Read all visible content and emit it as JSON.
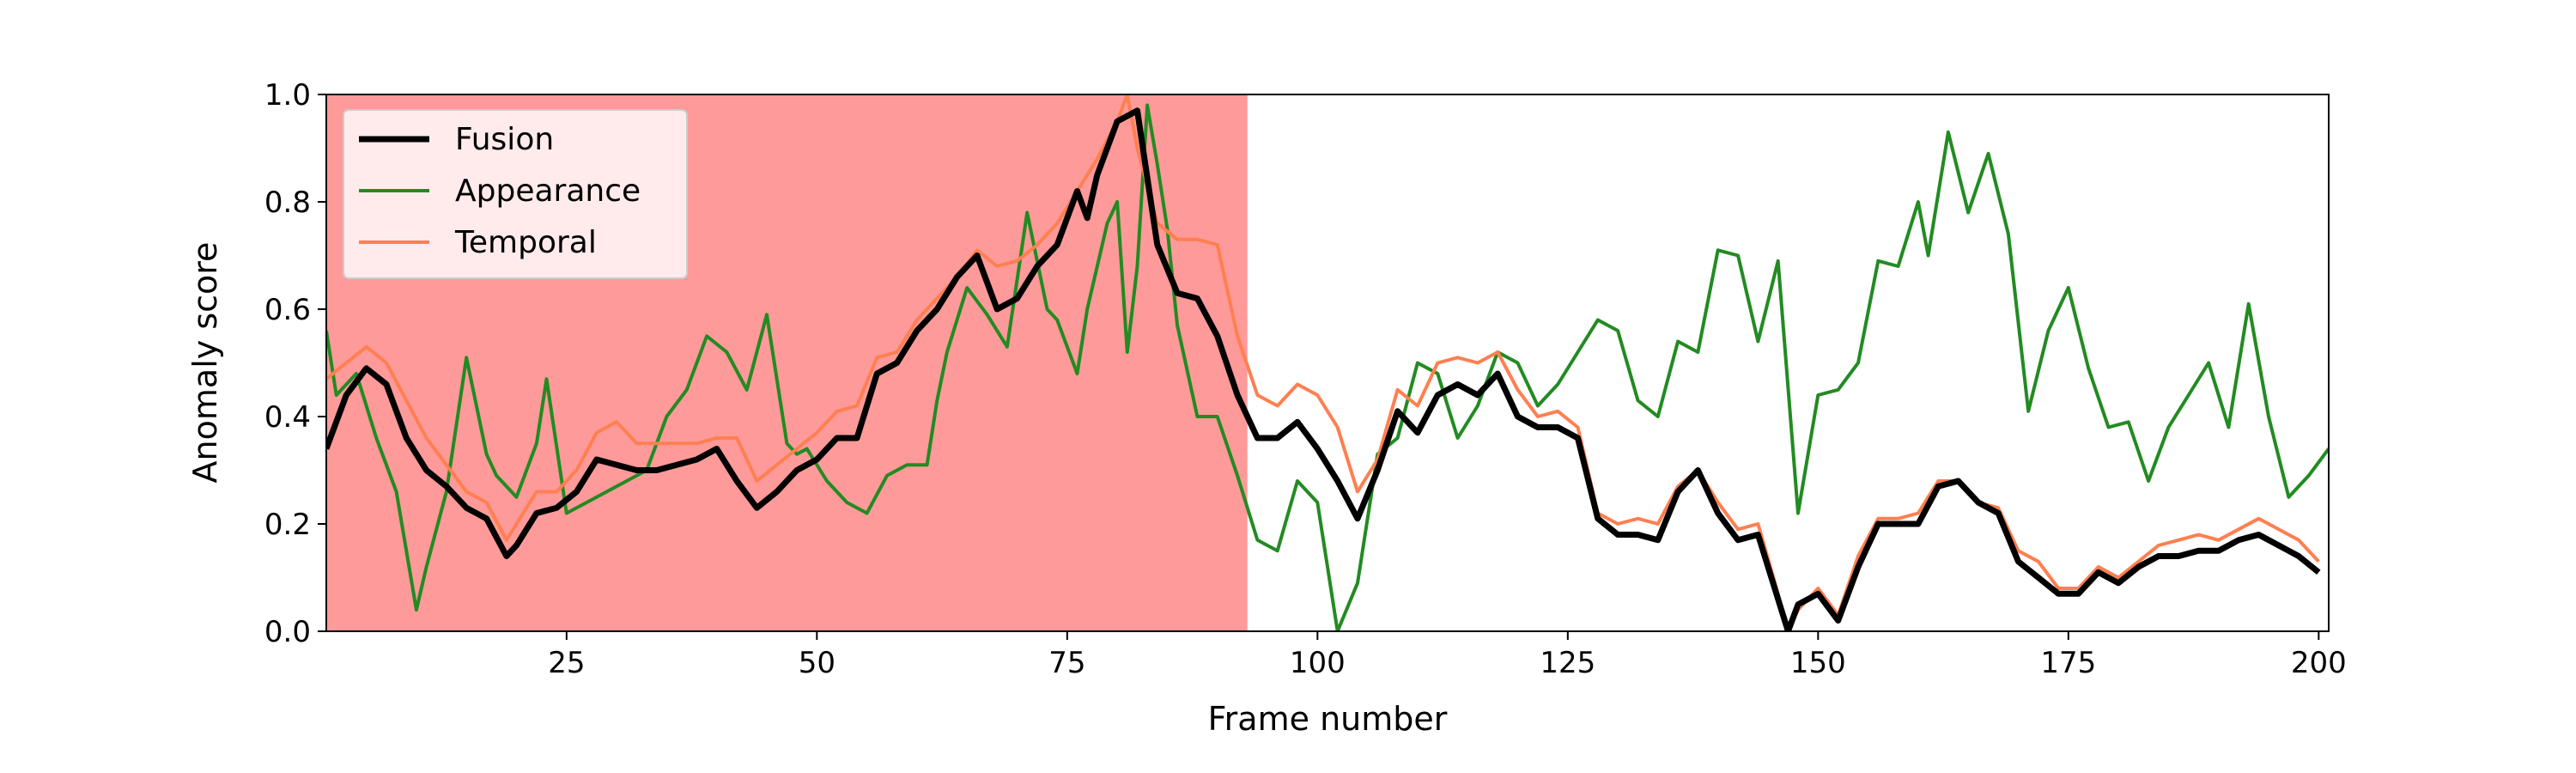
{
  "chart_data": {
    "type": "line",
    "xlabel": "Frame number",
    "ylabel": "Anomaly score",
    "xlim": [
      1,
      201
    ],
    "ylim": [
      0,
      1.0
    ],
    "xticks": [
      25,
      50,
      75,
      100,
      125,
      150,
      175,
      200
    ],
    "yticks": [
      0.0,
      0.2,
      0.4,
      0.6,
      0.8,
      1.0
    ],
    "xtick_labels": [
      "25",
      "50",
      "75",
      "100",
      "125",
      "150",
      "175",
      "200"
    ],
    "ytick_labels": [
      "0.0",
      "0.2",
      "0.4",
      "0.6",
      "0.8",
      "1.0"
    ],
    "grid": false,
    "legend_position": "upper-left",
    "shaded_region": {
      "x_start": 1,
      "x_end": 93,
      "color": "#ff9a9a"
    },
    "series": [
      {
        "name": "Fusion",
        "color": "#000000",
        "x": [
          1,
          3,
          5,
          7,
          9,
          11,
          13,
          15,
          17,
          19,
          20,
          22,
          24,
          26,
          28,
          30,
          32,
          34,
          36,
          38,
          40,
          42,
          44,
          46,
          48,
          50,
          52,
          54,
          56,
          58,
          60,
          62,
          64,
          66,
          68,
          70,
          72,
          74,
          76,
          77,
          78,
          80,
          82,
          84,
          86,
          88,
          90,
          92,
          94,
          96,
          98,
          100,
          102,
          104,
          106,
          108,
          110,
          112,
          114,
          116,
          118,
          120,
          122,
          124,
          126,
          128,
          130,
          132,
          134,
          136,
          138,
          140,
          142,
          144,
          146,
          147,
          148,
          150,
          152,
          154,
          156,
          158,
          160,
          162,
          164,
          166,
          168,
          170,
          172,
          174,
          176,
          178,
          180,
          182,
          184,
          186,
          188,
          190,
          192,
          194,
          196,
          198,
          200
        ],
        "y": [
          0.34,
          0.44,
          0.49,
          0.46,
          0.36,
          0.3,
          0.27,
          0.23,
          0.21,
          0.14,
          0.16,
          0.22,
          0.23,
          0.26,
          0.32,
          0.31,
          0.3,
          0.3,
          0.31,
          0.32,
          0.34,
          0.28,
          0.23,
          0.26,
          0.3,
          0.32,
          0.36,
          0.36,
          0.48,
          0.5,
          0.56,
          0.6,
          0.66,
          0.7,
          0.6,
          0.62,
          0.68,
          0.72,
          0.82,
          0.77,
          0.85,
          0.95,
          0.97,
          0.72,
          0.63,
          0.62,
          0.55,
          0.44,
          0.36,
          0.36,
          0.39,
          0.34,
          0.28,
          0.21,
          0.3,
          0.41,
          0.37,
          0.44,
          0.46,
          0.44,
          0.48,
          0.4,
          0.38,
          0.38,
          0.36,
          0.21,
          0.18,
          0.18,
          0.17,
          0.26,
          0.3,
          0.22,
          0.17,
          0.18,
          0.06,
          0.0,
          0.05,
          0.07,
          0.02,
          0.12,
          0.2,
          0.2,
          0.2,
          0.27,
          0.28,
          0.24,
          0.22,
          0.13,
          0.1,
          0.07,
          0.07,
          0.11,
          0.09,
          0.12,
          0.14,
          0.14,
          0.15,
          0.15,
          0.17,
          0.18,
          0.16,
          0.14,
          0.11
        ]
      },
      {
        "name": "Appearance",
        "color": "#228b22",
        "x": [
          1,
          2,
          4,
          6,
          8,
          10,
          11,
          13,
          15,
          17,
          18,
          20,
          21,
          22,
          23,
          25,
          27,
          29,
          31,
          33,
          35,
          37,
          39,
          41,
          43,
          45,
          47,
          48,
          49,
          51,
          53,
          55,
          57,
          59,
          61,
          62,
          63,
          65,
          67,
          69,
          71,
          73,
          74,
          76,
          77,
          79,
          80,
          81,
          82,
          83,
          84,
          85,
          86,
          88,
          90,
          92,
          94,
          96,
          98,
          100,
          102,
          104,
          106,
          108,
          110,
          112,
          114,
          116,
          118,
          120,
          122,
          124,
          126,
          128,
          130,
          132,
          134,
          136,
          138,
          140,
          142,
          144,
          146,
          148,
          150,
          152,
          154,
          156,
          158,
          160,
          161,
          163,
          165,
          167,
          169,
          171,
          173,
          175,
          177,
          179,
          181,
          183,
          185,
          187,
          189,
          191,
          193,
          195,
          197,
          199,
          201
        ],
        "y": [
          0.56,
          0.44,
          0.48,
          0.36,
          0.26,
          0.04,
          0.12,
          0.26,
          0.51,
          0.33,
          0.29,
          0.25,
          0.3,
          0.35,
          0.47,
          0.22,
          0.24,
          0.26,
          0.28,
          0.3,
          0.4,
          0.45,
          0.55,
          0.52,
          0.45,
          0.59,
          0.35,
          0.33,
          0.34,
          0.28,
          0.24,
          0.22,
          0.29,
          0.31,
          0.31,
          0.43,
          0.52,
          0.64,
          0.59,
          0.53,
          0.78,
          0.6,
          0.58,
          0.48,
          0.6,
          0.76,
          0.8,
          0.52,
          0.68,
          0.98,
          0.87,
          0.75,
          0.57,
          0.4,
          0.4,
          0.29,
          0.17,
          0.15,
          0.28,
          0.24,
          0.0,
          0.09,
          0.33,
          0.36,
          0.5,
          0.48,
          0.36,
          0.42,
          0.52,
          0.5,
          0.42,
          0.46,
          0.52,
          0.58,
          0.56,
          0.43,
          0.4,
          0.54,
          0.52,
          0.71,
          0.7,
          0.54,
          0.69,
          0.22,
          0.44,
          0.45,
          0.5,
          0.69,
          0.68,
          0.8,
          0.7,
          0.93,
          0.78,
          0.89,
          0.74,
          0.41,
          0.56,
          0.64,
          0.49,
          0.38,
          0.39,
          0.28,
          0.38,
          0.44,
          0.5,
          0.38,
          0.61,
          0.4,
          0.25,
          0.29,
          0.34
        ]
      },
      {
        "name": "Temporal",
        "color": "#ff7f50",
        "x": [
          1,
          3,
          5,
          7,
          9,
          11,
          13,
          15,
          17,
          19,
          20,
          22,
          24,
          26,
          28,
          30,
          32,
          34,
          36,
          38,
          40,
          42,
          44,
          46,
          48,
          50,
          52,
          54,
          56,
          58,
          60,
          62,
          64,
          66,
          68,
          70,
          72,
          74,
          76,
          78,
          80,
          81,
          82,
          84,
          86,
          88,
          90,
          92,
          94,
          96,
          98,
          100,
          102,
          104,
          106,
          108,
          110,
          112,
          114,
          116,
          118,
          120,
          122,
          124,
          126,
          128,
          130,
          132,
          134,
          136,
          138,
          140,
          142,
          144,
          146,
          147,
          148,
          150,
          152,
          154,
          156,
          158,
          160,
          162,
          164,
          166,
          168,
          170,
          172,
          174,
          176,
          178,
          180,
          182,
          184,
          186,
          188,
          190,
          192,
          194,
          196,
          198,
          200
        ],
        "y": [
          0.47,
          0.5,
          0.53,
          0.5,
          0.43,
          0.36,
          0.31,
          0.26,
          0.24,
          0.17,
          0.2,
          0.26,
          0.26,
          0.3,
          0.37,
          0.39,
          0.35,
          0.35,
          0.35,
          0.35,
          0.36,
          0.36,
          0.28,
          0.31,
          0.34,
          0.37,
          0.41,
          0.42,
          0.51,
          0.52,
          0.58,
          0.62,
          0.66,
          0.71,
          0.68,
          0.69,
          0.72,
          0.76,
          0.82,
          0.88,
          0.95,
          1.0,
          0.9,
          0.76,
          0.73,
          0.73,
          0.72,
          0.55,
          0.44,
          0.42,
          0.46,
          0.44,
          0.38,
          0.26,
          0.32,
          0.45,
          0.42,
          0.5,
          0.51,
          0.5,
          0.52,
          0.45,
          0.4,
          0.41,
          0.38,
          0.22,
          0.2,
          0.21,
          0.2,
          0.27,
          0.3,
          0.24,
          0.19,
          0.2,
          0.07,
          0.0,
          0.04,
          0.08,
          0.03,
          0.14,
          0.21,
          0.21,
          0.22,
          0.28,
          0.28,
          0.24,
          0.23,
          0.15,
          0.13,
          0.08,
          0.08,
          0.12,
          0.1,
          0.13,
          0.16,
          0.17,
          0.18,
          0.17,
          0.19,
          0.21,
          0.19,
          0.17,
          0.13
        ]
      }
    ]
  }
}
